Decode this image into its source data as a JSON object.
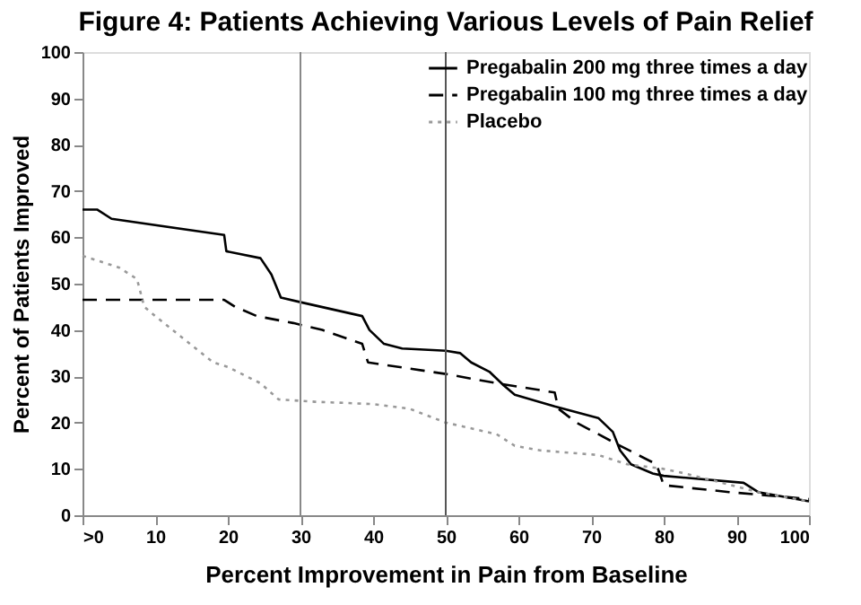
{
  "chart_data": {
    "type": "line",
    "title": "Figure 4: Patients Achieving Various Levels of Pain Relief",
    "xlabel": "Percent Improvement in Pain from Baseline",
    "ylabel": "Percent of Patients Improved",
    "xlim": [
      0,
      100
    ],
    "ylim": [
      0,
      100
    ],
    "xticks": [
      {
        "value": 0,
        "label": ">0"
      },
      10,
      20,
      30,
      40,
      50,
      60,
      70,
      80,
      90,
      100
    ],
    "yticks": [
      0,
      10,
      20,
      30,
      40,
      50,
      60,
      70,
      80,
      90,
      100
    ],
    "grid": false,
    "legend": "top right",
    "marker": "none",
    "ref_lines": [
      {
        "axis": "x",
        "value": 30,
        "color": "#888888"
      },
      {
        "axis": "x",
        "value": 50,
        "color": "#555555"
      }
    ],
    "series": [
      {
        "name": "Pregabalin 200 mg three times a day",
        "color": "#000000",
        "line_style": "solid",
        "x": [
          0,
          2,
          4,
          19.5,
          19.8,
          24.5,
          26,
          27.3,
          30,
          38.5,
          39.5,
          41.5,
          44,
          50,
          52,
          53.5,
          56,
          58,
          59.5,
          65,
          71,
          73,
          74,
          75.5,
          78.5,
          80,
          91,
          93,
          100
        ],
        "values": [
          66,
          66,
          64,
          60.5,
          57,
          55.5,
          52,
          47,
          46,
          43,
          40,
          37,
          36,
          35.5,
          35,
          33,
          31,
          28,
          26,
          23.5,
          21,
          18,
          14,
          11,
          9,
          8.5,
          7,
          5,
          3
        ]
      },
      {
        "name": "Pregabalin 100 mg three times a day",
        "color": "#000000",
        "line_style": "dashed",
        "x": [
          0,
          19.5,
          21,
          24,
          29,
          33,
          38.5,
          39.3,
          50,
          57,
          65,
          65.5,
          68,
          74,
          79,
          80,
          89,
          100
        ],
        "values": [
          46.5,
          46.5,
          45,
          43,
          41.5,
          40,
          37,
          33,
          30.5,
          28.5,
          26.5,
          23,
          20,
          15,
          11,
          6.5,
          5,
          3.5
        ]
      },
      {
        "name": "Placebo",
        "color": "#999999",
        "line_style": "dotted",
        "x": [
          0,
          5,
          7.5,
          8.5,
          10,
          14,
          18,
          20,
          24.5,
          27,
          32,
          40,
          45,
          50,
          57,
          59.5,
          63,
          71,
          75,
          80,
          83,
          93,
          100
        ],
        "values": [
          56,
          53.5,
          51,
          45,
          43,
          38,
          33,
          32,
          28.5,
          25,
          24.5,
          24,
          23,
          20,
          17.5,
          15,
          14,
          13,
          11,
          10,
          9,
          5,
          3
        ]
      }
    ]
  }
}
